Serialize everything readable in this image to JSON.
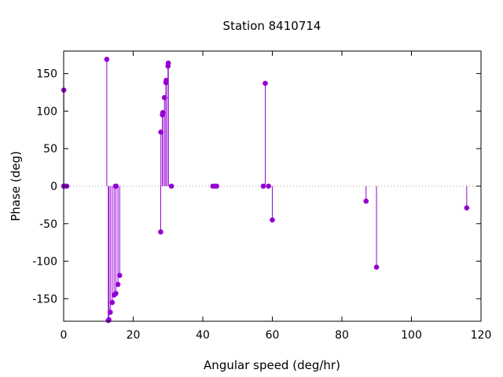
{
  "chart_data": {
    "type": "scatter",
    "style": "impulses-with-points",
    "title": "Station 8410714",
    "xlabel": "Angular speed (deg/hr)",
    "ylabel": "Phase (deg)",
    "xlim": [
      0,
      120
    ],
    "ylim": [
      -180,
      180
    ],
    "xticks": [
      0,
      20,
      40,
      60,
      80,
      100,
      120
    ],
    "yticks": [
      -150,
      -100,
      -50,
      0,
      50,
      100,
      150
    ],
    "grid": false,
    "zero_line": "dotted",
    "colors": {
      "series": "#9400d3",
      "axes": "#000000",
      "zero_line": "#a0a0a0"
    },
    "series": [
      {
        "x": [
          0.0,
          0.04,
          0.08,
          0.5,
          0.9,
          12.4,
          12.85,
          13.0,
          13.4,
          13.95,
          14.5,
          14.9,
          15.0,
          15.1,
          15.6,
          16.1,
          27.9,
          27.95,
          28.4,
          28.5,
          28.98,
          29.4,
          29.5,
          30.0,
          30.1,
          31.0,
          42.9,
          43.5,
          44.0,
          57.4,
          57.97,
          58.9,
          59.99,
          86.95,
          89.95,
          115.9
        ],
        "y": [
          0,
          128,
          0,
          0,
          0,
          169,
          -179,
          -178,
          -168,
          -155,
          -145,
          0,
          -143,
          0,
          -131,
          -119,
          -61,
          72,
          95,
          98,
          118,
          138,
          141,
          160,
          164,
          0,
          0,
          0,
          0,
          0,
          137,
          0,
          -45,
          -20,
          -108,
          -29
        ]
      }
    ]
  }
}
